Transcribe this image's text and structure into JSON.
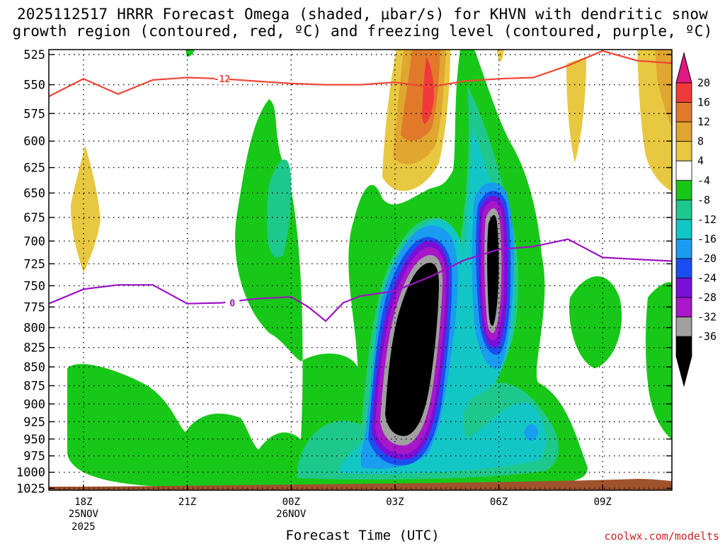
{
  "title": "2025112517 HRRR Forecast Omega (shaded, μbar/s) for KHVN with dendritic snow\ngrowth region (contoured, red, ºC) and freezing level (contoured, purple, ºC)",
  "credit": "coolwx.com/modelts",
  "chart_data": {
    "type": "heatmap",
    "title": "2025112517 HRRR Forecast Omega (shaded, μbar/s) for KHVN with dendritic snow growth region (contoured, red, ºC) and freezing level (contoured, purple, ºC)",
    "xlabel": "Forecast Time (UTC)",
    "ylabel": "",
    "x_ticks": [
      {
        "hour": 1,
        "label": "18Z",
        "sub": [
          "25NOV",
          "2025"
        ]
      },
      {
        "hour": 4,
        "label": "21Z",
        "sub": []
      },
      {
        "hour": 7,
        "label": "00Z",
        "sub": [
          "26NOV"
        ]
      },
      {
        "hour": 10,
        "label": "03Z",
        "sub": []
      },
      {
        "hour": 13,
        "label": "06Z",
        "sub": []
      },
      {
        "hour": 16,
        "label": "09Z",
        "sub": []
      }
    ],
    "x_range_hours_from_17Z": [
      0,
      18
    ],
    "y_levels_mb": [
      525,
      550,
      575,
      600,
      625,
      650,
      675,
      700,
      725,
      750,
      775,
      800,
      825,
      850,
      875,
      900,
      925,
      950,
      975,
      1000,
      1025
    ],
    "y_scale": "log-pressure (inverted)",
    "grid": true,
    "colorbar": {
      "labels": [
        "20",
        "16",
        "12",
        "8",
        "4",
        "-4",
        "-8",
        "-12",
        "-16",
        "-20",
        "-24",
        "-28",
        "-32",
        "-36"
      ],
      "colors": [
        "#f03a3a",
        "#e07a2a",
        "#e0a630",
        "#e8c840",
        "#ffffff",
        "#18c818",
        "#1ec88c",
        "#12c6c6",
        "#1a9cf0",
        "#1a4ef0",
        "#7a10d8",
        "#a818c8",
        "#a0a0a0",
        "#000000"
      ],
      "top_arrow_color": "#e01883",
      "bottom_arrow_color": "#000000"
    },
    "omega_regions": [
      {
        "name": "ascent-core-03Z",
        "center_hour": 10.4,
        "center_mb": 830,
        "min_ubar_s": -36
      },
      {
        "name": "ascent-core-06Z",
        "center_hour": 13.0,
        "center_mb": 735,
        "min_ubar_s": -36
      },
      {
        "name": "descent-04Z",
        "center_hour": 10.9,
        "center_mb": 560,
        "max_ubar_s": 20
      },
      {
        "name": "descent-11Z",
        "center_hour": 17.8,
        "center_mb": 580,
        "max_ubar_s": 8
      }
    ],
    "contours": [
      {
        "name": "dendritic -12C",
        "color": "#ef4537",
        "label": "-12",
        "points": [
          [
            0,
            560
          ],
          [
            1,
            545
          ],
          [
            2,
            558
          ],
          [
            3,
            546
          ],
          [
            4,
            544
          ],
          [
            5,
            545
          ],
          [
            6,
            547
          ],
          [
            7,
            549
          ],
          [
            8,
            550
          ],
          [
            9,
            550
          ],
          [
            10,
            548
          ],
          [
            11,
            552
          ],
          [
            12,
            547
          ],
          [
            13,
            545
          ],
          [
            14,
            544
          ],
          [
            15,
            534
          ],
          [
            16,
            522
          ],
          [
            17,
            530
          ],
          [
            18,
            532
          ]
        ]
      },
      {
        "name": "freezing level 0C",
        "color": "#9b12c2",
        "label": "0",
        "points": [
          [
            0,
            771
          ],
          [
            1,
            754
          ],
          [
            2,
            749
          ],
          [
            3,
            749
          ],
          [
            4,
            771
          ],
          [
            5,
            770
          ],
          [
            6,
            765
          ],
          [
            7,
            763
          ],
          [
            7.5,
            775
          ],
          [
            8,
            792
          ],
          [
            8.5,
            770
          ],
          [
            9,
            762
          ],
          [
            10,
            756
          ],
          [
            11,
            740
          ],
          [
            12,
            721
          ],
          [
            13,
            709
          ],
          [
            14,
            706
          ],
          [
            15,
            698
          ],
          [
            16,
            718
          ],
          [
            17,
            720
          ],
          [
            18,
            722
          ]
        ]
      }
    ],
    "ground_color": "#a0522d"
  }
}
